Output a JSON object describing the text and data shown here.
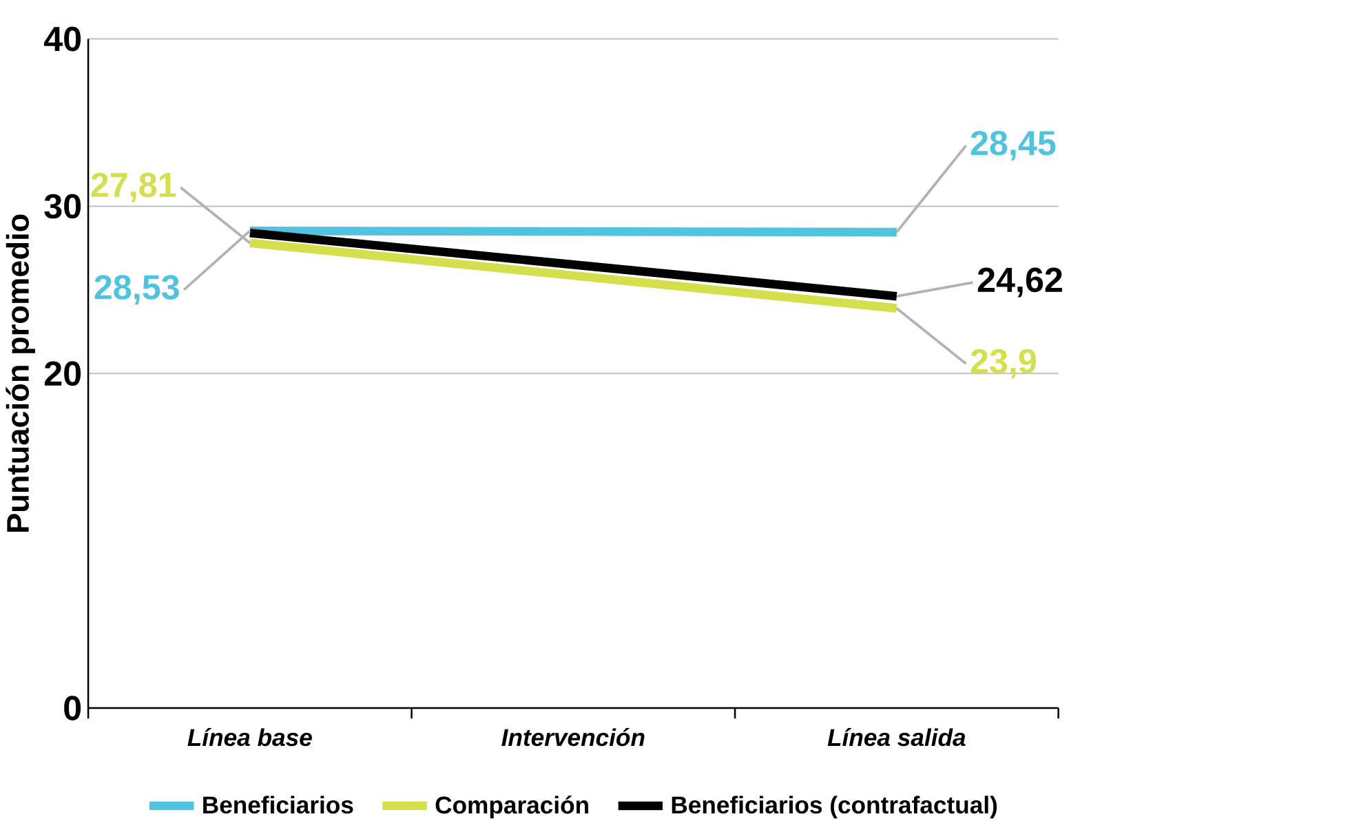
{
  "chart_data": {
    "type": "line",
    "ylabel": "Puntuación promedio",
    "categories": [
      "Línea base",
      "Intervención",
      "Línea salida"
    ],
    "ylim": [
      0,
      40
    ],
    "yticks": [
      0,
      20,
      30,
      40
    ],
    "grid": "y",
    "legend": "bottom",
    "line_style": "solid",
    "series": [
      {
        "name": "Beneficiarios",
        "color": "#4fc3e0",
        "values": [
          28.53,
          null,
          28.45
        ],
        "value_labels": [
          "28,53",
          null,
          "28,45"
        ]
      },
      {
        "name": "Comparación",
        "color": "#d3e04c",
        "values": [
          27.81,
          null,
          23.9
        ],
        "value_labels": [
          "27,81",
          null,
          "23,9"
        ]
      },
      {
        "name": "Beneficiarios (contrafactual)",
        "color": "#000000",
        "values": [
          28.4,
          null,
          24.62
        ],
        "value_labels": [
          null,
          null,
          "24,62"
        ]
      }
    ]
  }
}
